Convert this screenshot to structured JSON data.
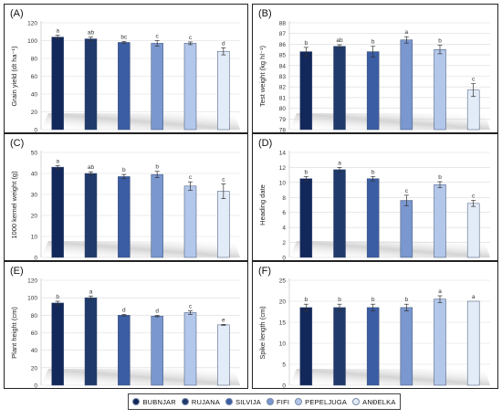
{
  "legend": [
    {
      "name": "BUBNJAR",
      "color": "#12275a"
    },
    {
      "name": "RUJANA",
      "color": "#1f3a6b"
    },
    {
      "name": "SILVIJA",
      "color": "#3b5da3"
    },
    {
      "name": "FIFI",
      "color": "#7a97cf"
    },
    {
      "name": "PEPELJUGA",
      "color": "#b3c7ea"
    },
    {
      "name": "ANĐELKA",
      "color": "#e2ebf8"
    }
  ],
  "chart_data": [
    {
      "type": "bar",
      "panel": "(A)",
      "ylabel": "Grain yield (dt ha⁻¹)",
      "ylim": [
        0,
        120
      ],
      "yticks": [
        "0",
        "20",
        "40",
        "60",
        "80",
        "100",
        "120"
      ],
      "tick_values": [
        0,
        20,
        40,
        60,
        80,
        100,
        120
      ],
      "series": [
        {
          "values": [
            104,
            102,
            98,
            97,
            97,
            88
          ],
          "errors": [
            2,
            2,
            1,
            3,
            1.5,
            4
          ],
          "letters": [
            "a",
            "ab",
            "bc",
            "c",
            "c",
            "d"
          ]
        }
      ]
    },
    {
      "type": "bar",
      "panel": "(B)",
      "ylabel": "Test weight (kg hl⁻¹)",
      "ylim": [
        78,
        88
      ],
      "yticks": [
        "78",
        "79",
        "80",
        "81",
        "82",
        "83",
        "84",
        "85",
        "86",
        "87",
        "88"
      ],
      "tick_values": [
        78,
        79,
        80,
        81,
        82,
        83,
        84,
        85,
        86,
        87,
        88
      ],
      "series": [
        {
          "values": [
            85.3,
            85.8,
            85.3,
            86.4,
            85.5,
            81.7
          ],
          "errors": [
            0.4,
            0.15,
            0.5,
            0.3,
            0.4,
            0.6
          ],
          "letters": [
            "b",
            "ab",
            "b",
            "a",
            "b",
            "c"
          ]
        }
      ]
    },
    {
      "type": "bar",
      "panel": "(C)",
      "ylabel": "1000 kernel weight (g)",
      "ylim": [
        0,
        50
      ],
      "yticks": [
        "0",
        "10",
        "20",
        "30",
        "40",
        "50"
      ],
      "tick_values": [
        0,
        10,
        20,
        30,
        40,
        50
      ],
      "series": [
        {
          "values": [
            43,
            40,
            38.5,
            39.5,
            34,
            31.5
          ],
          "errors": [
            0.8,
            0.8,
            1,
            1.5,
            2,
            3.5
          ],
          "letters": [
            "a",
            "ab",
            "b",
            "b",
            "c",
            "c"
          ]
        }
      ]
    },
    {
      "type": "bar",
      "panel": "(D)",
      "ylabel": "Heading date",
      "ylim": [
        0,
        14
      ],
      "yticks": [
        "0",
        "2",
        "4",
        "6",
        "8",
        "10",
        "12",
        "14"
      ],
      "tick_values": [
        0,
        2,
        4,
        6,
        8,
        10,
        12,
        14
      ],
      "series": [
        {
          "values": [
            10.5,
            11.7,
            10.5,
            7.6,
            9.7,
            7.2
          ],
          "errors": [
            0.3,
            0.3,
            0.3,
            0.7,
            0.4,
            0.4
          ],
          "letters": [
            "b",
            "a",
            "b",
            "c",
            "b",
            "c"
          ]
        }
      ]
    },
    {
      "type": "bar",
      "panel": "(E)",
      "ylabel": "Plant height (cm)",
      "ylim": [
        0,
        120
      ],
      "yticks": [
        "0",
        "20",
        "40",
        "60",
        "80",
        "100",
        "120"
      ],
      "tick_values": [
        0,
        20,
        40,
        60,
        80,
        100,
        120
      ],
      "series": [
        {
          "values": [
            94,
            100,
            80,
            79,
            83,
            69
          ],
          "errors": [
            2,
            2,
            0.8,
            0.8,
            2,
            0.5
          ],
          "letters": [
            "b",
            "a",
            "d",
            "d",
            "c",
            "e"
          ]
        }
      ]
    },
    {
      "type": "bar",
      "panel": "(F)",
      "ylabel": "Spike length (cm)",
      "ylim": [
        0,
        25
      ],
      "yticks": [
        "0",
        "5",
        "10",
        "15",
        "20",
        "25"
      ],
      "tick_values": [
        0,
        5,
        10,
        15,
        20,
        25
      ],
      "series": [
        {
          "values": [
            18.5,
            18.5,
            18.5,
            18.5,
            20.5,
            20
          ],
          "errors": [
            0.8,
            0.8,
            0.8,
            0.8,
            0.8,
            0
          ],
          "letters": [
            "b",
            "b",
            "b",
            "b",
            "a",
            "a"
          ]
        }
      ]
    }
  ]
}
